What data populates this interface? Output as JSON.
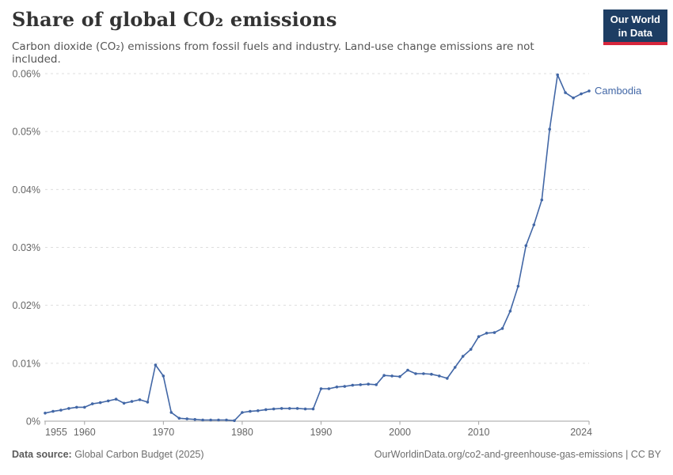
{
  "header": {
    "title": "Share of global CO₂ emissions",
    "subtitle": "Carbon dioxide (CO₂) emissions from fossil fuels and industry. Land-use change emissions are not included.",
    "logo": {
      "line1": "Our World",
      "line2": "in Data",
      "bg_color": "#1d3d63",
      "accent_color": "#d7263c"
    }
  },
  "footer": {
    "source_label": "Data source:",
    "source_value": " Global Carbon Budget (2025)",
    "link_text": "OurWorldinData.org/co2-and-greenhouse-gas-emissions | CC BY"
  },
  "chart_data": {
    "type": "line",
    "title": "Share of global CO₂ emissions",
    "unit": "%",
    "grid": "horizontal-dashed",
    "legend_position": "end-of-line-label",
    "xlim": [
      1955,
      2024
    ],
    "ylim": [
      0,
      0.06
    ],
    "yticks": [
      0,
      0.01,
      0.02,
      0.03,
      0.04,
      0.05,
      0.06
    ],
    "ytick_labels": [
      "0%",
      "0.01%",
      "0.02%",
      "0.03%",
      "0.04%",
      "0.05%",
      "0.06%"
    ],
    "xticks": [
      1955,
      1960,
      1970,
      1980,
      1990,
      2000,
      2010,
      2024
    ],
    "xtick_labels": [
      "1955",
      "1960",
      "1970",
      "1980",
      "1990",
      "2000",
      "2010",
      "2024"
    ],
    "x": [
      1955,
      1956,
      1957,
      1958,
      1959,
      1960,
      1961,
      1962,
      1963,
      1964,
      1965,
      1966,
      1967,
      1968,
      1969,
      1970,
      1971,
      1972,
      1973,
      1974,
      1975,
      1976,
      1977,
      1978,
      1979,
      1980,
      1981,
      1982,
      1983,
      1984,
      1985,
      1986,
      1987,
      1988,
      1989,
      1990,
      1991,
      1992,
      1993,
      1994,
      1995,
      1996,
      1997,
      1998,
      1999,
      2000,
      2001,
      2002,
      2003,
      2004,
      2005,
      2006,
      2007,
      2008,
      2009,
      2010,
      2011,
      2012,
      2013,
      2014,
      2015,
      2016,
      2017,
      2018,
      2019,
      2020,
      2021,
      2022,
      2023,
      2024
    ],
    "series": [
      {
        "name": "Cambodia",
        "color": "#4267a6",
        "values": [
          0.0014,
          0.0017,
          0.0019,
          0.0022,
          0.0024,
          0.0024,
          0.003,
          0.0032,
          0.0035,
          0.0038,
          0.0031,
          0.0034,
          0.0037,
          0.0033,
          0.0097,
          0.0078,
          0.0015,
          0.0005,
          0.0004,
          0.0003,
          0.0002,
          0.0002,
          0.0002,
          0.0002,
          0.0001,
          0.0015,
          0.0017,
          0.0018,
          0.002,
          0.0021,
          0.0022,
          0.0022,
          0.0022,
          0.0021,
          0.0021,
          0.0056,
          0.0056,
          0.0059,
          0.006,
          0.0062,
          0.0063,
          0.0064,
          0.0063,
          0.0079,
          0.0078,
          0.0077,
          0.0088,
          0.0082,
          0.0082,
          0.0081,
          0.0078,
          0.0074,
          0.0093,
          0.0112,
          0.0124,
          0.0146,
          0.0152,
          0.0153,
          0.016,
          0.019,
          0.0233,
          0.0303,
          0.0339,
          0.0382,
          0.0504,
          0.0598,
          0.0567,
          0.0558,
          0.0565,
          0.057
        ]
      }
    ],
    "colors": {
      "gridline": "#dddddd",
      "axis_line": "#a3a3a3",
      "tick_label": "#666666"
    }
  }
}
